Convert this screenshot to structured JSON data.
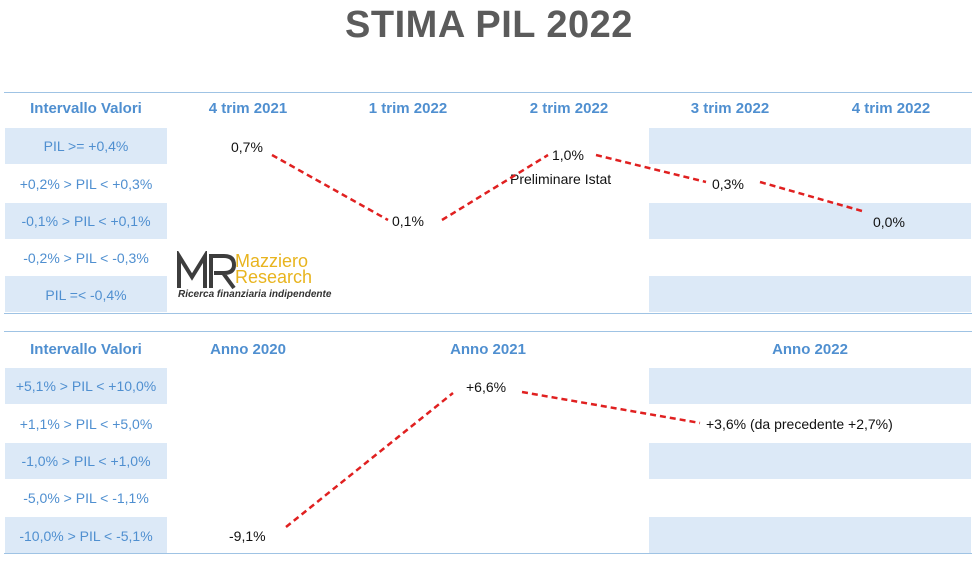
{
  "title": "STIMA PIL 2022",
  "colors": {
    "title": "#5b5b5b",
    "header": "#4f8fd0",
    "band": "#dce9f7",
    "line": "#e02020"
  },
  "logo": {
    "icon": "mr-monogram-icon",
    "brand_line1": "Mazziero",
    "brand_line2": "Research",
    "tagline": "Ricerca finanziaria indipendente"
  },
  "chart_data": [
    {
      "type": "table",
      "row_header": "Intervallo Valori",
      "columns": [
        "4 trim 2021",
        "1 trim 2022",
        "2 trim 2022",
        "3 trim 2022",
        "4 trim 2022"
      ],
      "rows": [
        "PIL >= +0,4%",
        "+0,2% > PIL < +0,3%",
        "-0,1% > PIL < +0,1%",
        "-0,2% > PIL < -0,3%",
        "PIL =< -0,4%"
      ],
      "points": [
        {
          "column": "4 trim 2021",
          "value": 0.7,
          "label": "0,7%"
        },
        {
          "column": "1 trim 2022",
          "value": 0.1,
          "label": "0,1%"
        },
        {
          "column": "2 trim 2022",
          "value": 1.0,
          "label": "1,0%"
        },
        {
          "column": "3 trim 2022",
          "value": 0.3,
          "label": "0,3%"
        },
        {
          "column": "4 trim 2022",
          "value": 0.0,
          "label": "0,0%"
        }
      ],
      "annotations": [
        "Preliminare Istat"
      ]
    },
    {
      "type": "table",
      "row_header": "Intervallo Valori",
      "columns": [
        "Anno 2020",
        "Anno 2021",
        "Anno 2022"
      ],
      "rows": [
        "+5,1% > PIL < +10,0%",
        "+1,1% > PIL < +5,0%",
        "-1,0% > PIL < +1,0%",
        "-5,0% > PIL < -1,1%",
        "-10,0% > PIL < -5,1%"
      ],
      "points": [
        {
          "column": "Anno 2020",
          "value": -9.1,
          "label": "-9,1%"
        },
        {
          "column": "Anno 2021",
          "value": 6.6,
          "label": "+6,6%"
        },
        {
          "column": "Anno 2022",
          "value": 3.6,
          "label": "+3,6% (da precedente +2,7%)"
        }
      ]
    }
  ]
}
